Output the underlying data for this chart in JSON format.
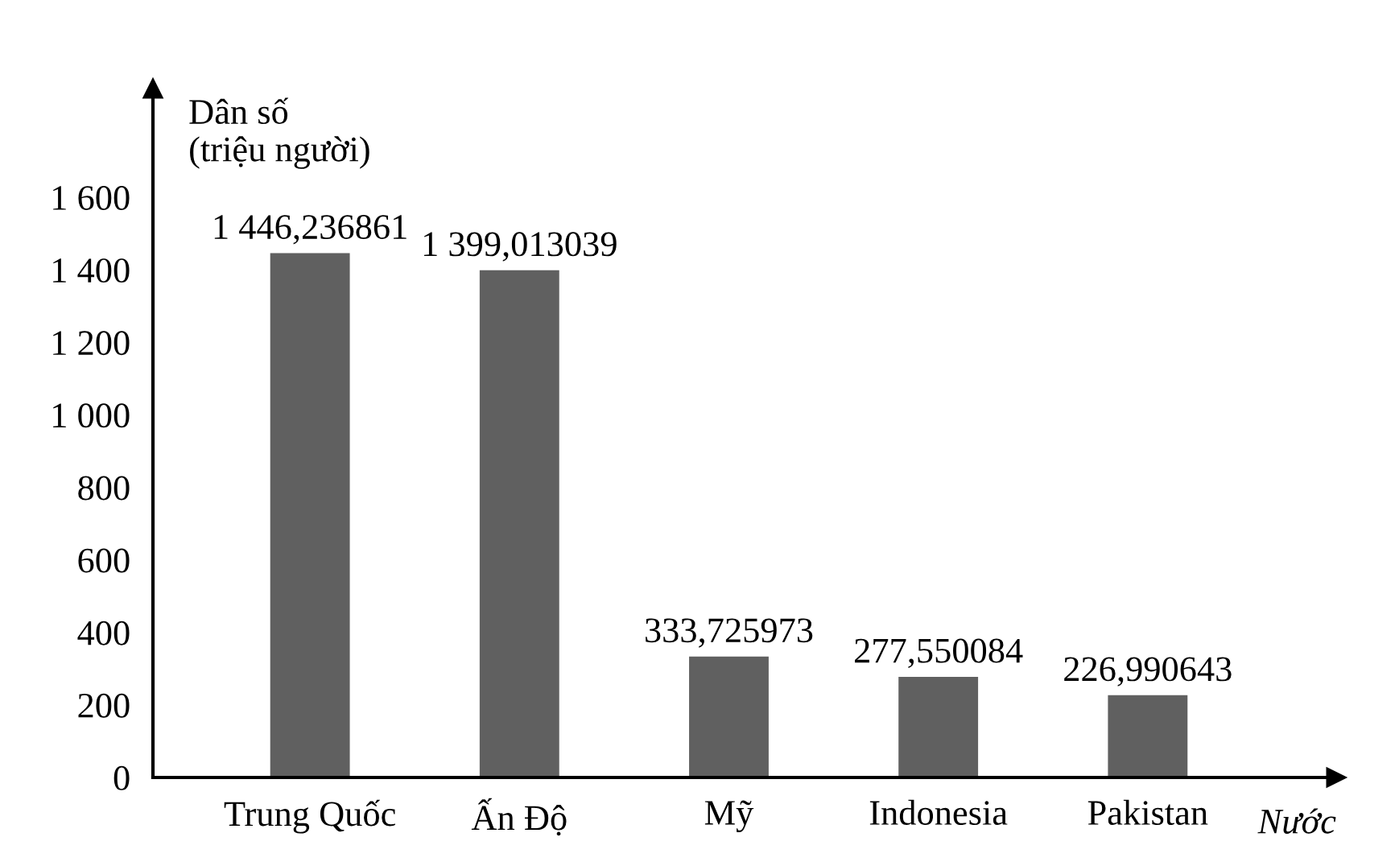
{
  "chart_data": {
    "type": "bar",
    "xlabel": "Nước",
    "ylabel": "Dân số\n(triệu người)",
    "categories": [
      "Trung Quốc",
      "Ấn Độ",
      "Mỹ",
      "Indonesia",
      "Pakistan"
    ],
    "values": [
      1446.236861,
      1399.013039,
      333.725973,
      277.550084,
      226.990643
    ],
    "value_labels": [
      "1 446,236861",
      "1 399,013039",
      "333,725973",
      "277,550084",
      "226,990643"
    ],
    "color": "#606060",
    "ylim": [
      0,
      1900
    ],
    "yticks": [
      0,
      200,
      400,
      600,
      800,
      {
        "value": 1000,
        "label": "1 000"
      },
      {
        "value": 1200,
        "label": "1 200"
      },
      {
        "value": 1400,
        "label": "1 400"
      },
      {
        "value": 1600,
        "label": "1 600"
      }
    ],
    "grid": false
  }
}
